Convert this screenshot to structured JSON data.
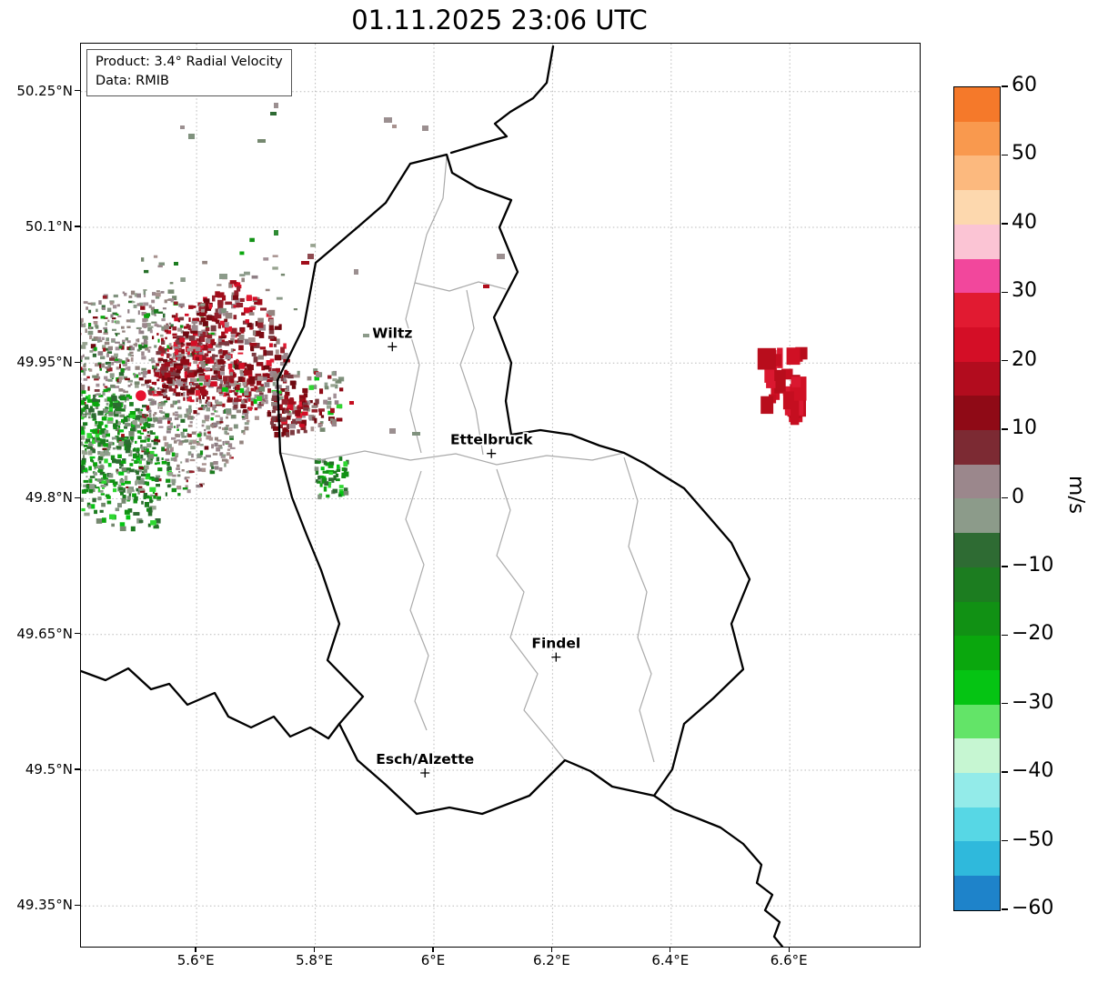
{
  "title": "01.11.2025 23:06 UTC",
  "annotation": {
    "line1": "Product: 3.4° Radial Velocity",
    "line2": "Data: RMIB"
  },
  "axes": {
    "x_tick_labels": [
      "5.6°E",
      "5.8°E",
      "6°E",
      "6.2°E",
      "6.4°E",
      "6.6°E"
    ],
    "x_tick_values": [
      5.6,
      5.8,
      6.0,
      6.2,
      6.4,
      6.6
    ],
    "y_tick_labels": [
      "50.25°N",
      "50.1°N",
      "49.95°N",
      "49.8°N",
      "49.65°N",
      "49.5°N",
      "49.35°N"
    ],
    "y_tick_values": [
      50.25,
      50.1,
      49.95,
      49.8,
      49.65,
      49.5,
      49.35
    ],
    "lon_range": [
      5.405,
      6.819
    ],
    "lat_range": [
      49.305,
      50.303
    ],
    "grid": "dotted"
  },
  "cities": [
    {
      "name": "Wiltz",
      "lon": 5.93,
      "lat": 49.968
    },
    {
      "name": "Ettelbruck",
      "lon": 6.097,
      "lat": 49.85
    },
    {
      "name": "Findel",
      "lon": 6.206,
      "lat": 49.625
    },
    {
      "name": "Esch/Alzette",
      "lon": 5.985,
      "lat": 49.497
    }
  ],
  "radar_site": {
    "lon": 5.506,
    "lat": 49.914,
    "marker_color": "#e8112f"
  },
  "colorbar": {
    "unit": "m/s",
    "vmin": -60,
    "vmax": 60,
    "tick_labels": [
      "60",
      "50",
      "40",
      "30",
      "20",
      "10",
      "0",
      "−10",
      "−20",
      "−30",
      "−40",
      "−50",
      "−60"
    ],
    "tick_values": [
      60,
      50,
      40,
      30,
      20,
      10,
      0,
      -10,
      -20,
      -30,
      -40,
      -50,
      -60
    ],
    "segments": [
      {
        "min": 55,
        "max": 60,
        "color": "#f5792a"
      },
      {
        "min": 50,
        "max": 55,
        "color": "#f9994e"
      },
      {
        "min": 45,
        "max": 50,
        "color": "#fcb97e"
      },
      {
        "min": 40,
        "max": 45,
        "color": "#fdd8ae"
      },
      {
        "min": 35,
        "max": 40,
        "color": "#fbc4d4"
      },
      {
        "min": 30,
        "max": 35,
        "color": "#f2479c"
      },
      {
        "min": 25,
        "max": 30,
        "color": "#e11a31"
      },
      {
        "min": 20,
        "max": 25,
        "color": "#d40e26"
      },
      {
        "min": 15,
        "max": 20,
        "color": "#b20c1e"
      },
      {
        "min": 10,
        "max": 15,
        "color": "#8f0a16"
      },
      {
        "min": 5,
        "max": 10,
        "color": "#7c2a33"
      },
      {
        "min": 0,
        "max": 5,
        "color": "#9b878c"
      },
      {
        "min": -5,
        "max": 0,
        "color": "#8c9b8a"
      },
      {
        "min": -10,
        "max": -5,
        "color": "#2e6b33"
      },
      {
        "min": -15,
        "max": -10,
        "color": "#1c7d20"
      },
      {
        "min": -20,
        "max": -15,
        "color": "#119114"
      },
      {
        "min": -25,
        "max": -20,
        "color": "#0aa70d"
      },
      {
        "min": -30,
        "max": -25,
        "color": "#05c413"
      },
      {
        "min": -35,
        "max": -30,
        "color": "#63e468"
      },
      {
        "min": -40,
        "max": -35,
        "color": "#c6f6d2"
      },
      {
        "min": -45,
        "max": -40,
        "color": "#93ebe9"
      },
      {
        "min": -50,
        "max": -45,
        "color": "#57d7e5"
      },
      {
        "min": -55,
        "max": -50,
        "color": "#2fb9dc"
      },
      {
        "min": -60,
        "max": -55,
        "color": "#1e83ca"
      }
    ]
  },
  "radar_echoes": {
    "velocity_field": {
      "center_lon": 5.506,
      "center_lat": 49.914,
      "extent_deg": 0.18,
      "away_from_radar": "positive velocities ~5 to 25 m/s (dark red) in ENE sector",
      "toward_radar": "negative velocities ~-5 to -25 m/s (green) in S-SW sector",
      "near_zero": "grey-mauve speckle elsewhere"
    },
    "distant_cluster": {
      "lon_min": 6.545,
      "lon_max": 6.645,
      "lat_min": 49.89,
      "lat_max": 49.968,
      "approx_velocity": "+20 to +25 m/s"
    }
  }
}
